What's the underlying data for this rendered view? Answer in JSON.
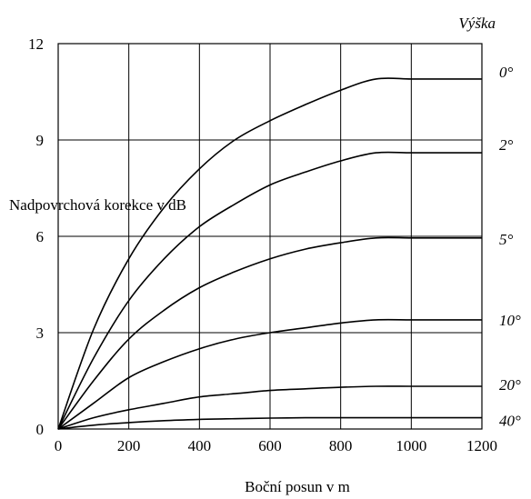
{
  "chart_data": {
    "type": "line",
    "title": "",
    "xlabel": "Boční posun v m",
    "ylabel": "Nadpovrchová korekce v dB",
    "legend_title": "Výška",
    "xlim": [
      0,
      1200
    ],
    "ylim": [
      0,
      12
    ],
    "x_ticks": [
      "0",
      "200",
      "400",
      "600",
      "800",
      "1000",
      "1200"
    ],
    "y_ticks": [
      "0",
      "3",
      "6",
      "9",
      "12"
    ],
    "grid": true,
    "x": [
      0,
      100,
      200,
      300,
      400,
      500,
      600,
      700,
      800,
      900,
      1000,
      1100,
      1200
    ],
    "series": [
      {
        "name": "0°",
        "values": [
          0,
          3.1,
          5.3,
          6.9,
          8.1,
          9.0,
          9.6,
          10.1,
          10.55,
          10.9,
          10.9,
          10.9,
          10.9
        ]
      },
      {
        "name": "2°",
        "values": [
          0,
          2.2,
          4.0,
          5.3,
          6.3,
          7.0,
          7.6,
          8.0,
          8.35,
          8.6,
          8.6,
          8.6,
          8.6
        ]
      },
      {
        "name": "5°",
        "values": [
          0,
          1.5,
          2.8,
          3.7,
          4.4,
          4.9,
          5.3,
          5.6,
          5.8,
          5.95,
          5.95,
          5.95,
          5.95
        ]
      },
      {
        "name": "10°",
        "values": [
          0,
          0.8,
          1.6,
          2.1,
          2.5,
          2.8,
          3.0,
          3.15,
          3.3,
          3.4,
          3.4,
          3.4,
          3.4
        ]
      },
      {
        "name": "20°",
        "values": [
          0,
          0.35,
          0.6,
          0.8,
          1.0,
          1.1,
          1.2,
          1.25,
          1.3,
          1.33,
          1.33,
          1.33,
          1.33
        ]
      },
      {
        "name": "40°",
        "values": [
          0,
          0.12,
          0.2,
          0.26,
          0.3,
          0.32,
          0.34,
          0.35,
          0.35,
          0.35,
          0.35,
          0.35,
          0.35
        ]
      }
    ]
  }
}
